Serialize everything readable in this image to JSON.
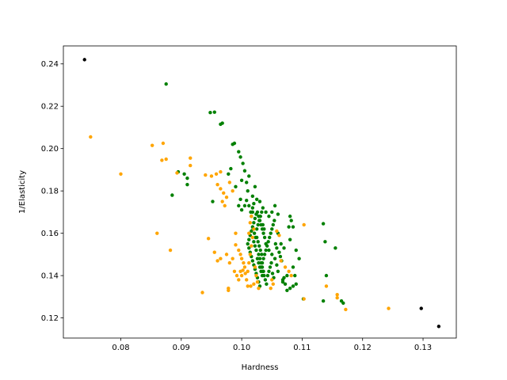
{
  "chart_data": {
    "type": "scatter",
    "title": "",
    "xlabel": "Hardness",
    "ylabel": "1/Elasticity",
    "xlim": [
      0.0705,
      0.1355
    ],
    "ylim": [
      0.1105,
      0.2485
    ],
    "grid": false,
    "x_ticks": [
      "0.08",
      "0.09",
      "0.10",
      "0.11",
      "0.12",
      "0.13"
    ],
    "y_ticks": [
      "0.12",
      "0.14",
      "0.16",
      "0.18",
      "0.20",
      "0.22",
      "0.24"
    ],
    "series": [
      {
        "color": "#008000",
        "points": [
          [
            0.0875,
            0.2305
          ],
          [
            0.0948,
            0.217
          ],
          [
            0.0955,
            0.2172
          ],
          [
            0.0965,
            0.2115
          ],
          [
            0.0968,
            0.212
          ],
          [
            0.0985,
            0.202
          ],
          [
            0.0988,
            0.2025
          ],
          [
            0.0995,
            0.1985
          ],
          [
            0.0998,
            0.196
          ],
          [
            0.1002,
            0.193
          ],
          [
            0.0982,
            0.1905
          ],
          [
            0.1005,
            0.1895
          ],
          [
            0.0978,
            0.188
          ],
          [
            0.0895,
            0.189
          ],
          [
            0.0905,
            0.188
          ],
          [
            0.091,
            0.186
          ],
          [
            0.0885,
            0.178
          ],
          [
            0.091,
            0.183
          ],
          [
            0.0952,
            0.175
          ],
          [
            0.099,
            0.182
          ],
          [
            0.1,
            0.185
          ],
          [
            0.1008,
            0.184
          ],
          [
            0.1012,
            0.187
          ],
          [
            0.101,
            0.18
          ],
          [
            0.1022,
            0.182
          ],
          [
            0.1018,
            0.1775
          ],
          [
            0.0998,
            0.176
          ],
          [
            0.0995,
            0.173
          ],
          [
            0.1,
            0.171
          ],
          [
            0.1005,
            0.173
          ],
          [
            0.1008,
            0.1755
          ],
          [
            0.1012,
            0.173
          ],
          [
            0.1015,
            0.17
          ],
          [
            0.1018,
            0.172
          ],
          [
            0.102,
            0.174
          ],
          [
            0.1025,
            0.176
          ],
          [
            0.103,
            0.175
          ],
          [
            0.1035,
            0.172
          ],
          [
            0.104,
            0.17
          ],
          [
            0.1045,
            0.168
          ],
          [
            0.105,
            0.17
          ],
          [
            0.1055,
            0.173
          ],
          [
            0.106,
            0.169
          ],
          [
            0.108,
            0.168
          ],
          [
            0.1082,
            0.166
          ],
          [
            0.1085,
            0.163
          ],
          [
            0.1078,
            0.163
          ],
          [
            0.106,
            0.16
          ],
          [
            0.1065,
            0.155
          ],
          [
            0.107,
            0.153
          ],
          [
            0.108,
            0.157
          ],
          [
            0.109,
            0.152
          ],
          [
            0.1095,
            0.148
          ],
          [
            0.1085,
            0.144
          ],
          [
            0.1088,
            0.14
          ],
          [
            0.1075,
            0.14
          ],
          [
            0.107,
            0.139
          ],
          [
            0.1068,
            0.137
          ],
          [
            0.1072,
            0.136
          ],
          [
            0.1075,
            0.133
          ],
          [
            0.108,
            0.134
          ],
          [
            0.1085,
            0.135
          ],
          [
            0.109,
            0.136
          ],
          [
            0.1102,
            0.129
          ],
          [
            0.1135,
            0.128
          ],
          [
            0.1135,
            0.1645
          ],
          [
            0.1138,
            0.156
          ],
          [
            0.1155,
            0.153
          ],
          [
            0.114,
            0.14
          ],
          [
            0.1165,
            0.128
          ],
          [
            0.1168,
            0.127
          ],
          [
            0.1068,
            0.138
          ],
          [
            0.106,
            0.142
          ],
          [
            0.1058,
            0.145
          ],
          [
            0.1055,
            0.148
          ],
          [
            0.105,
            0.15
          ],
          [
            0.1045,
            0.152
          ],
          [
            0.104,
            0.155
          ],
          [
            0.1038,
            0.158
          ],
          [
            0.1036,
            0.16
          ],
          [
            0.1034,
            0.162
          ],
          [
            0.1032,
            0.164
          ],
          [
            0.103,
            0.166
          ],
          [
            0.1028,
            0.168
          ],
          [
            0.1026,
            0.17
          ],
          [
            0.1024,
            0.169
          ],
          [
            0.1022,
            0.167
          ],
          [
            0.102,
            0.165
          ],
          [
            0.1018,
            0.163
          ],
          [
            0.1016,
            0.161
          ],
          [
            0.1014,
            0.159
          ],
          [
            0.1012,
            0.157
          ],
          [
            0.101,
            0.155
          ],
          [
            0.1012,
            0.153
          ],
          [
            0.1014,
            0.151
          ],
          [
            0.1016,
            0.149
          ],
          [
            0.1018,
            0.147
          ],
          [
            0.102,
            0.145
          ],
          [
            0.1022,
            0.143
          ],
          [
            0.1024,
            0.141
          ],
          [
            0.1026,
            0.139
          ],
          [
            0.1028,
            0.137
          ],
          [
            0.103,
            0.135
          ],
          [
            0.1032,
            0.144
          ],
          [
            0.1034,
            0.146
          ],
          [
            0.1036,
            0.148
          ],
          [
            0.1038,
            0.15
          ],
          [
            0.104,
            0.152
          ],
          [
            0.1042,
            0.154
          ],
          [
            0.1044,
            0.156
          ],
          [
            0.1046,
            0.158
          ],
          [
            0.1048,
            0.16
          ],
          [
            0.105,
            0.162
          ],
          [
            0.1052,
            0.164
          ],
          [
            0.1054,
            0.166
          ],
          [
            0.1056,
            0.155
          ],
          [
            0.1058,
            0.153
          ],
          [
            0.1062,
            0.151
          ],
          [
            0.1064,
            0.149
          ],
          [
            0.1066,
            0.147
          ],
          [
            0.1025,
            0.158
          ],
          [
            0.1027,
            0.156
          ],
          [
            0.1029,
            0.154
          ],
          [
            0.1031,
            0.152
          ],
          [
            0.1033,
            0.15
          ],
          [
            0.1035,
            0.142
          ],
          [
            0.1037,
            0.14
          ],
          [
            0.1039,
            0.138
          ],
          [
            0.1041,
            0.136
          ],
          [
            0.1043,
            0.14
          ],
          [
            0.1045,
            0.142
          ],
          [
            0.1047,
            0.144
          ],
          [
            0.1049,
            0.146
          ],
          [
            0.1051,
            0.141
          ],
          [
            0.1053,
            0.139
          ],
          [
            0.1019,
            0.162
          ],
          [
            0.1021,
            0.16
          ],
          [
            0.1023,
            0.158
          ],
          [
            0.1025,
            0.162
          ],
          [
            0.1027,
            0.164
          ],
          [
            0.1029,
            0.166
          ],
          [
            0.1031,
            0.168
          ],
          [
            0.1033,
            0.17
          ],
          [
            0.1035,
            0.164
          ],
          [
            0.1037,
            0.162
          ],
          [
            0.1028,
            0.15
          ],
          [
            0.103,
            0.148
          ],
          [
            0.1032,
            0.146
          ],
          [
            0.1034,
            0.144
          ],
          [
            0.1036,
            0.142
          ],
          [
            0.1016,
            0.168
          ],
          [
            0.1018,
            0.17
          ],
          [
            0.102,
            0.156
          ],
          [
            0.1022,
            0.154
          ],
          [
            0.1024,
            0.152
          ],
          [
            0.1026,
            0.148
          ],
          [
            0.1028,
            0.146
          ],
          [
            0.103,
            0.144
          ],
          [
            0.1032,
            0.142
          ],
          [
            0.1034,
            0.14
          ]
        ]
      },
      {
        "color": "#FFA500",
        "points": [
          [
            0.075,
            0.2055
          ],
          [
            0.08,
            0.188
          ],
          [
            0.0852,
            0.2015
          ],
          [
            0.087,
            0.2025
          ],
          [
            0.0868,
            0.1945
          ],
          [
            0.0875,
            0.195
          ],
          [
            0.0915,
            0.1955
          ],
          [
            0.0915,
            0.192
          ],
          [
            0.0893,
            0.1885
          ],
          [
            0.094,
            0.1875
          ],
          [
            0.095,
            0.187
          ],
          [
            0.0958,
            0.188
          ],
          [
            0.0965,
            0.189
          ],
          [
            0.096,
            0.183
          ],
          [
            0.0965,
            0.181
          ],
          [
            0.097,
            0.179
          ],
          [
            0.0975,
            0.177
          ],
          [
            0.098,
            0.184
          ],
          [
            0.0985,
            0.18
          ],
          [
            0.0968,
            0.175
          ],
          [
            0.0972,
            0.173
          ],
          [
            0.086,
            0.16
          ],
          [
            0.0882,
            0.152
          ],
          [
            0.0945,
            0.1575
          ],
          [
            0.099,
            0.16
          ],
          [
            0.0955,
            0.151
          ],
          [
            0.0975,
            0.15
          ],
          [
            0.096,
            0.147
          ],
          [
            0.0965,
            0.148
          ],
          [
            0.098,
            0.146
          ],
          [
            0.0995,
            0.152
          ],
          [
            0.0998,
            0.15
          ],
          [
            0.1,
            0.148
          ],
          [
            0.1003,
            0.146
          ],
          [
            0.1005,
            0.144
          ],
          [
            0.0988,
            0.142
          ],
          [
            0.0992,
            0.14
          ],
          [
            0.0995,
            0.138
          ],
          [
            0.0998,
            0.142
          ],
          [
            0.1,
            0.14
          ],
          [
            0.0978,
            0.134
          ],
          [
            0.0978,
            0.133
          ],
          [
            0.0935,
            0.132
          ],
          [
            0.101,
            0.135
          ],
          [
            0.1015,
            0.135
          ],
          [
            0.1008,
            0.138
          ],
          [
            0.101,
            0.142
          ],
          [
            0.1012,
            0.146
          ],
          [
            0.1014,
            0.15
          ],
          [
            0.1016,
            0.154
          ],
          [
            0.1018,
            0.158
          ],
          [
            0.102,
            0.162
          ],
          [
            0.1014,
            0.165
          ],
          [
            0.1016,
            0.168
          ],
          [
            0.1012,
            0.16
          ],
          [
            0.1022,
            0.144
          ],
          [
            0.1024,
            0.14
          ],
          [
            0.1026,
            0.137
          ],
          [
            0.1028,
            0.134
          ],
          [
            0.102,
            0.136
          ],
          [
            0.105,
            0.138
          ],
          [
            0.1052,
            0.136
          ],
          [
            0.1048,
            0.134
          ],
          [
            0.1058,
            0.161
          ],
          [
            0.1062,
            0.159
          ],
          [
            0.1065,
            0.147
          ],
          [
            0.1072,
            0.144
          ],
          [
            0.1078,
            0.142
          ],
          [
            0.1082,
            0.14
          ],
          [
            0.1103,
            0.164
          ],
          [
            0.1103,
            0.129
          ],
          [
            0.114,
            0.135
          ],
          [
            0.1158,
            0.131
          ],
          [
            0.1158,
            0.1295
          ],
          [
            0.1172,
            0.124
          ],
          [
            0.1243,
            0.1245
          ],
          [
            0.099,
            0.1545
          ],
          [
            0.0985,
            0.148
          ],
          [
            0.1002,
            0.1425
          ],
          [
            0.1006,
            0.141
          ]
        ]
      },
      {
        "color": "#000000",
        "points": [
          [
            0.074,
            0.242
          ],
          [
            0.1297,
            0.1245
          ],
          [
            0.1326,
            0.116
          ]
        ]
      }
    ]
  }
}
